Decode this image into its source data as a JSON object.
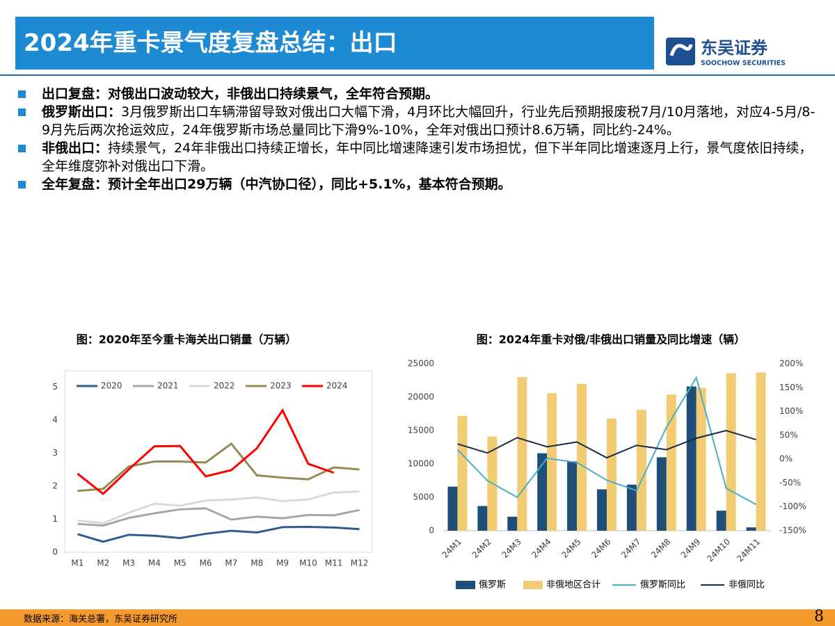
{
  "header": {
    "title": "2024年重卡景气度复盘总结：出口",
    "logo_cn": "东吴证券",
    "logo_en": "SOOCHOW SECURITIES"
  },
  "bullets": [
    {
      "lead": "出口复盘：",
      "text": "对俄出口波动较大，非俄出口持续景气，全年符合预期。",
      "bold": true
    },
    {
      "lead": "俄罗斯出口：",
      "text": "3月俄罗斯出口车辆滞留导致对俄出口大幅下滑，4月环比大幅回升，行业先后预期报废税7月/10月落地，对应4-5月/8-9月先后两次抢运效应，24年俄罗斯市场总量同比下滑9%-10%，全年对俄出口预计8.6万辆，同比约-24%。",
      "bold": false
    },
    {
      "lead": "非俄出口：",
      "text": "持续景气，24年非俄出口持续正增长，年中同比增速降速引发市场担忧，但下半年同比增速逐月上行，景气度依旧持续，全年维度弥补对俄出口下滑。",
      "bold": false
    },
    {
      "lead": "全年复盘：",
      "text": "预计全年出口29万辆（中汽协口径），同比+5.1%，基本符合预期。",
      "bold": true
    }
  ],
  "footer": {
    "source": "数据来源：海关总署，东吴证券研究所",
    "page": "8"
  },
  "chart_data": [
    {
      "type": "line",
      "title": "图：2020年至今重卡海关出口销量（万辆）",
      "categories": [
        "M1",
        "M2",
        "M3",
        "M4",
        "M5",
        "M6",
        "M7",
        "M8",
        "M9",
        "M10",
        "M11",
        "M12"
      ],
      "ylim": [
        0,
        5.5
      ],
      "yticks": [
        0,
        1,
        2,
        3,
        4,
        5
      ],
      "grid": false,
      "legend": "top",
      "series": [
        {
          "name": "2020",
          "color": "#2f5b8f",
          "values": [
            0.55,
            0.32,
            0.53,
            0.5,
            0.43,
            0.56,
            0.65,
            0.6,
            0.76,
            0.77,
            0.75,
            0.7
          ]
        },
        {
          "name": "2021",
          "color": "#a6a6a6",
          "values": [
            0.86,
            0.81,
            1.04,
            1.18,
            1.3,
            1.33,
            0.99,
            1.08,
            1.03,
            1.13,
            1.12,
            1.28
          ]
        },
        {
          "name": "2022",
          "color": "#d9d9d9",
          "values": [
            0.96,
            0.88,
            1.2,
            1.47,
            1.41,
            1.57,
            1.6,
            1.66,
            1.55,
            1.6,
            1.81,
            1.84
          ]
        },
        {
          "name": "2023",
          "color": "#948a54",
          "values": [
            1.86,
            1.92,
            2.6,
            2.75,
            2.75,
            2.72,
            3.29,
            2.33,
            2.26,
            2.21,
            2.57,
            2.51
          ]
        },
        {
          "name": "2024",
          "color": "#ff0000",
          "values": [
            2.38,
            1.77,
            2.51,
            3.21,
            3.22,
            2.3,
            2.49,
            3.15,
            4.3,
            2.68,
            2.41,
            null
          ]
        }
      ]
    },
    {
      "type": "bar-line",
      "title": "图：2024年重卡对俄/非俄出口销量及同比增速（辆）",
      "categories": [
        "24M1",
        "24M2",
        "24M3",
        "24M4",
        "24M5",
        "24M6",
        "24M7",
        "24M8",
        "24M9",
        "24M10",
        "24M11"
      ],
      "ylim": [
        0,
        25000
      ],
      "yticks": [
        0,
        5000,
        10000,
        15000,
        20000,
        25000
      ],
      "y2lim": [
        -150,
        200
      ],
      "y2ticks": [
        {
          "value": -150,
          "label": "-150%"
        },
        {
          "value": -100,
          "label": "-100%"
        },
        {
          "value": -50,
          "label": "-50%"
        },
        {
          "value": 0,
          "label": "0%"
        },
        {
          "value": 50,
          "label": "50%"
        },
        {
          "value": 100,
          "label": "100%"
        },
        {
          "value": 150,
          "label": "150%"
        },
        {
          "value": 200,
          "label": "200%"
        }
      ],
      "grid": false,
      "legend": "bottom",
      "series": [
        {
          "name": "俄罗斯",
          "kind": "bar",
          "color": "#1f4e79",
          "values": [
            6600,
            3700,
            2100,
            11600,
            10400,
            6200,
            6900,
            11000,
            21600,
            3000,
            500
          ]
        },
        {
          "name": "非俄地区合计",
          "kind": "bar",
          "color": "#f2cc73",
          "values": [
            17200,
            14100,
            23000,
            20600,
            22000,
            16800,
            18100,
            20400,
            21400,
            23600,
            23700
          ]
        },
        {
          "name": "俄罗斯同比",
          "kind": "line",
          "axis": "y2",
          "color": "#4bacc6",
          "values": [
            20,
            -45,
            -80,
            2,
            -7,
            -44,
            -66,
            67,
            171,
            -61,
            -95
          ]
        },
        {
          "name": "非俄同比",
          "kind": "line",
          "axis": "y2",
          "color": "#1a2a44",
          "values": [
            32,
            13,
            45,
            26,
            36,
            3,
            29,
            20,
            44,
            60,
            41
          ]
        }
      ]
    }
  ]
}
